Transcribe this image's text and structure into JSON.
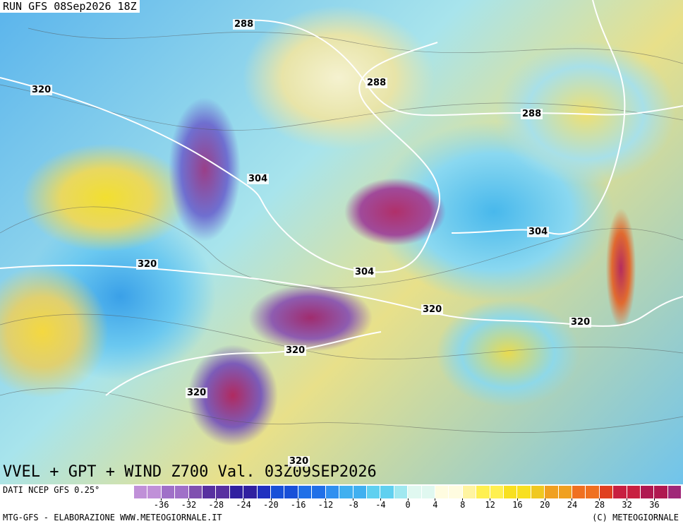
{
  "header": {
    "run": "RUN GFS 08Sep2026 18Z",
    "title": "VVEL + GPT + WIND Z700 Val. 03Z09SEP2026"
  },
  "contour_labels": [
    "288",
    "288",
    "288",
    "320",
    "304",
    "304",
    "304",
    "320",
    "320",
    "320",
    "320",
    "320",
    "320"
  ],
  "colorbar": {
    "source": "DATI NCEP GFS 0.25°",
    "ticks": [
      -36,
      -32,
      -28,
      -24,
      -20,
      -16,
      -12,
      -8,
      -4,
      0,
      4,
      8,
      12,
      16,
      20,
      24,
      28,
      32,
      36
    ]
  },
  "footer": {
    "left": "MTG-GFS - ELABORAZIONE WWW.METEOGIORNALE.IT",
    "right": "(C) METEOGIORNALE"
  }
}
